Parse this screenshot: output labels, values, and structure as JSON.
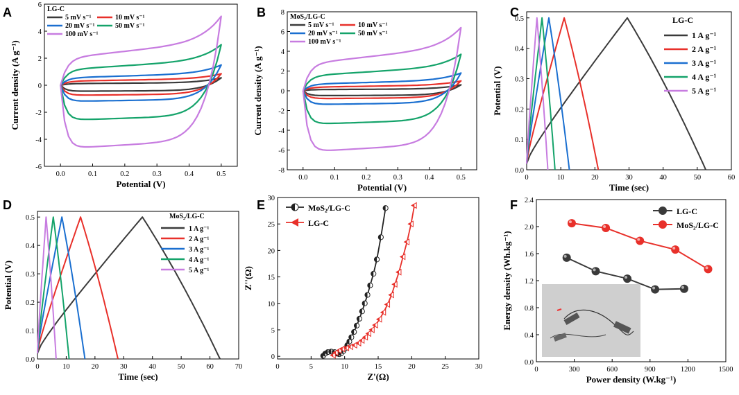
{
  "chart_data": [
    {
      "id": "A",
      "panel_label": "A",
      "type": "line",
      "subtype": "cv",
      "xlabel": "Potential (V)",
      "ylabel": "Current density (A g⁻¹)",
      "xlim": [
        -0.05,
        0.55
      ],
      "ylim": [
        -6,
        6
      ],
      "xticks": [
        "0.0",
        "0.1",
        "0.2",
        "0.3",
        "0.4",
        "0.5"
      ],
      "xtick_values": [
        0.0,
        0.1,
        0.2,
        0.3,
        0.4,
        0.5
      ],
      "yticks": [
        "-6",
        "-4",
        "-2",
        "0",
        "2",
        "4",
        "6"
      ],
      "ytick_values": [
        -6,
        -4,
        -2,
        0,
        2,
        4,
        6
      ],
      "legend_title": "LG-C",
      "legend_cols": 2,
      "series": [
        {
          "name": "5 mV s⁻¹",
          "color": "#3a3a3a",
          "i_low": -0.45,
          "i_high": 0.2,
          "i_end": 0.55
        },
        {
          "name": "10 mV s⁻¹",
          "color": "#e8302a",
          "i_low": -0.75,
          "i_high": 0.5,
          "i_end": 0.85
        },
        {
          "name": "20 mV s⁻¹",
          "color": "#1a6fd0",
          "i_low": -1.2,
          "i_high": 0.9,
          "i_end": 1.5
        },
        {
          "name": "50 mV s⁻¹",
          "color": "#14a36a",
          "i_low": -2.6,
          "i_high": 1.9,
          "i_end": 3.0
        },
        {
          "name": "100 mV s⁻¹",
          "color": "#c77ce0",
          "i_low": -4.7,
          "i_high": 3.3,
          "i_end": 5.1
        }
      ]
    },
    {
      "id": "B",
      "panel_label": "B",
      "type": "line",
      "subtype": "cv",
      "xlabel": "Potential (V)",
      "ylabel": "Current density (A g⁻¹)",
      "xlim": [
        -0.05,
        0.55
      ],
      "ylim": [
        -8,
        8
      ],
      "xticks": [
        "0.0",
        "0.1",
        "0.2",
        "0.3",
        "0.4",
        "0.5"
      ],
      "xtick_values": [
        0.0,
        0.1,
        0.2,
        0.3,
        0.4,
        0.5
      ],
      "yticks": [
        "-8",
        "-6",
        "-4",
        "-2",
        "0",
        "2",
        "4",
        "6",
        "8"
      ],
      "ytick_values": [
        -8,
        -6,
        -4,
        -2,
        0,
        2,
        4,
        6,
        8
      ],
      "legend_title": "MoS₂/LG-C",
      "legend_cols": 2,
      "series": [
        {
          "name": "5 mV s⁻¹",
          "color": "#3a3a3a",
          "i_low": -0.5,
          "i_high": 0.2,
          "i_end": 0.6
        },
        {
          "name": "10 mV s⁻¹",
          "color": "#e8302a",
          "i_low": -0.8,
          "i_high": 0.6,
          "i_end": 1.0
        },
        {
          "name": "20 mV s⁻¹",
          "color": "#1a6fd0",
          "i_low": -1.4,
          "i_high": 1.1,
          "i_end": 1.8
        },
        {
          "name": "50 mV s⁻¹",
          "color": "#14a36a",
          "i_low": -3.4,
          "i_high": 2.5,
          "i_end": 3.7
        },
        {
          "name": "100 mV s⁻¹",
          "color": "#c77ce0",
          "i_low": -6.2,
          "i_high": 4.5,
          "i_end": 6.4
        }
      ]
    },
    {
      "id": "C",
      "panel_label": "C",
      "type": "line",
      "subtype": "gcd",
      "xlabel": "Time (sec)",
      "ylabel": "Potential (V)",
      "xlim": [
        0,
        60
      ],
      "ylim": [
        0,
        0.52
      ],
      "xticks": [
        "0",
        "10",
        "20",
        "30",
        "40",
        "50",
        "60"
      ],
      "xtick_values": [
        0,
        10,
        20,
        30,
        40,
        50,
        60
      ],
      "yticks": [
        "0.0",
        "0.1",
        "0.2",
        "0.3",
        "0.4",
        "0.5"
      ],
      "ytick_values": [
        0,
        0.1,
        0.2,
        0.3,
        0.4,
        0.5
      ],
      "legend_title": "LG-C",
      "legend_cols": 1,
      "series": [
        {
          "name": "1 A g⁻¹",
          "color": "#3a3a3a",
          "t_peak": 29.5,
          "t_end": 52.5
        },
        {
          "name": "2 A g⁻¹",
          "color": "#e8302a",
          "t_peak": 11,
          "t_end": 21
        },
        {
          "name": "3 A g⁻¹",
          "color": "#1a6fd0",
          "t_peak": 6.5,
          "t_end": 12.5
        },
        {
          "name": "4 A g⁻¹",
          "color": "#14a36a",
          "t_peak": 4.5,
          "t_end": 8.3
        },
        {
          "name": "5 A g⁻¹",
          "color": "#c77ce0",
          "t_peak": 3,
          "t_end": 6.2
        }
      ]
    },
    {
      "id": "D",
      "panel_label": "D",
      "type": "line",
      "subtype": "gcd",
      "xlabel": "Time (sec)",
      "ylabel": "Potential (V)",
      "xlim": [
        0,
        70
      ],
      "ylim": [
        0,
        0.52
      ],
      "xticks": [
        "0",
        "10",
        "20",
        "30",
        "40",
        "50",
        "60",
        "70"
      ],
      "xtick_values": [
        0,
        10,
        20,
        30,
        40,
        50,
        60,
        70
      ],
      "yticks": [
        "0.0",
        "0.1",
        "0.2",
        "0.3",
        "0.4",
        "0.5"
      ],
      "ytick_values": [
        0,
        0.1,
        0.2,
        0.3,
        0.4,
        0.5
      ],
      "legend_title": "MoS₂/LG-C",
      "legend_cols": 1,
      "series": [
        {
          "name": "1 A g⁻¹",
          "color": "#3a3a3a",
          "t_peak": 36.5,
          "t_end": 63.5
        },
        {
          "name": "2 A g⁻¹",
          "color": "#e8302a",
          "t_peak": 15,
          "t_end": 28
        },
        {
          "name": "3 A g⁻¹",
          "color": "#1a6fd0",
          "t_peak": 8.5,
          "t_end": 16.5
        },
        {
          "name": "4 A g⁻¹",
          "color": "#14a36a",
          "t_peak": 5.5,
          "t_end": 11
        },
        {
          "name": "5 A g⁻¹",
          "color": "#c77ce0",
          "t_peak": 3,
          "t_end": 6.5
        }
      ]
    },
    {
      "id": "E",
      "panel_label": "E",
      "type": "scatter",
      "subtype": "nyquist",
      "xlabel": "Z'(Ω)",
      "ylabel": "Z''(Ω)",
      "xlim": [
        0,
        30
      ],
      "ylim": [
        -0.5,
        30
      ],
      "xticks": [
        "0",
        "5",
        "10",
        "15",
        "20",
        "25",
        "30"
      ],
      "xtick_values": [
        0,
        5,
        10,
        15,
        20,
        25,
        30
      ],
      "yticks": [
        "0",
        "5",
        "10",
        "15",
        "20",
        "25",
        "30"
      ],
      "ytick_values": [
        0,
        5,
        10,
        15,
        20,
        25,
        30
      ],
      "series": [
        {
          "name": "MoS₂/LG-C",
          "color": "#222222",
          "marker": "half-circle",
          "x": [
            6.8,
            7.1,
            7.5,
            8.0,
            8.5,
            8.9,
            9.2,
            9.5,
            9.8,
            10.1,
            10.4,
            10.7,
            11.0,
            11.4,
            11.8,
            12.2,
            12.6,
            13.0,
            13.4,
            13.8,
            14.3,
            14.8,
            15.4,
            16.1
          ],
          "y": [
            0.1,
            0.5,
            0.8,
            0.9,
            0.8,
            0.5,
            0.4,
            0.6,
            1.0,
            1.5,
            2.1,
            2.8,
            3.6,
            4.6,
            5.8,
            7.1,
            8.5,
            10.0,
            11.6,
            13.4,
            15.6,
            18.3,
            22.5,
            28.0
          ]
        },
        {
          "name": "LG-C",
          "color": "#e8302a",
          "marker": "half-triangle",
          "x": [
            8.3,
            8.7,
            9.2,
            9.7,
            10.3,
            10.9,
            11.5,
            12.1,
            12.6,
            13.1,
            13.6,
            14.1,
            14.6,
            15.2,
            15.8,
            16.4,
            17.0,
            17.5,
            18.1,
            18.7,
            19.3,
            19.9,
            20.4
          ],
          "y": [
            0.2,
            0.7,
            1.1,
            1.4,
            1.6,
            1.8,
            2.1,
            2.5,
            3.0,
            3.6,
            4.3,
            5.0,
            5.9,
            7.0,
            8.3,
            9.8,
            11.6,
            13.6,
            15.9,
            18.8,
            21.6,
            25.0,
            28.5
          ]
        }
      ]
    },
    {
      "id": "F",
      "panel_label": "F",
      "type": "line",
      "subtype": "ragone",
      "xlabel": "Power density (W.kg⁻¹)",
      "ylabel": "Energy density (Wh.kg⁻¹)",
      "xlim": [
        0,
        1500
      ],
      "ylim": [
        0,
        2.4
      ],
      "xticks": [
        "0",
        "300",
        "600",
        "900",
        "1200",
        "1500"
      ],
      "xtick_values": [
        0,
        300,
        600,
        900,
        1200,
        1500
      ],
      "yticks": [
        "0.0",
        "0.4",
        "0.8",
        "1.2",
        "1.6",
        "2.0",
        "2.4"
      ],
      "ytick_values": [
        0,
        0.4,
        0.8,
        1.2,
        1.6,
        2.0,
        2.4
      ],
      "series": [
        {
          "name": "LG-C",
          "color": "#3a3a3a",
          "x": [
            240,
            470,
            720,
            940,
            1170
          ],
          "y": [
            1.54,
            1.34,
            1.23,
            1.07,
            1.08
          ]
        },
        {
          "name": "MoS₂/LG-C",
          "color": "#e8302a",
          "x": [
            280,
            550,
            820,
            1100,
            1360
          ],
          "y": [
            2.05,
            1.98,
            1.79,
            1.66,
            1.37
          ]
        }
      ],
      "inset": "photograph of a device connected with alligator clips"
    }
  ]
}
